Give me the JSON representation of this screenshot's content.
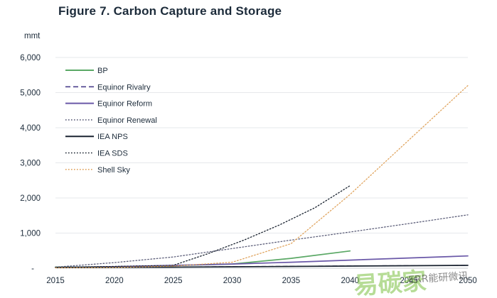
{
  "chart_data": {
    "type": "line",
    "title": "Figure 7. Carbon Capture and Storage",
    "ylabel": "mmt",
    "xlabel": "",
    "xlim": [
      2015,
      2050
    ],
    "ylim": [
      0,
      6000
    ],
    "x_ticks": [
      "2015",
      "2020",
      "2025",
      "2030",
      "2035",
      "2040",
      "2045",
      "2050"
    ],
    "y_ticks": [
      "-",
      "1,000",
      "2,000",
      "3,000",
      "4,000",
      "5,000",
      "6,000"
    ],
    "grid": "horizontal",
    "legend_position": "top-left",
    "series": [
      {
        "name": "BP",
        "color": "#5aa865",
        "style": "solid",
        "points": [
          [
            2015,
            30
          ],
          [
            2020,
            45
          ],
          [
            2025,
            75
          ],
          [
            2030,
            120
          ],
          [
            2035,
            280
          ],
          [
            2040,
            490
          ]
        ]
      },
      {
        "name": "Equinor Rivalry",
        "color": "#4b3f8c",
        "style": "dashed",
        "points": [
          [
            2015,
            20
          ],
          [
            2020,
            25
          ],
          [
            2025,
            35
          ],
          [
            2030,
            45
          ],
          [
            2035,
            55
          ],
          [
            2040,
            65
          ],
          [
            2045,
            72
          ],
          [
            2050,
            80
          ]
        ]
      },
      {
        "name": "Equinor Reform",
        "color": "#6a58a8",
        "style": "solid",
        "points": [
          [
            2015,
            25
          ],
          [
            2020,
            45
          ],
          [
            2025,
            80
          ],
          [
            2030,
            120
          ],
          [
            2035,
            170
          ],
          [
            2040,
            230
          ],
          [
            2045,
            290
          ],
          [
            2050,
            350
          ]
        ]
      },
      {
        "name": "Equinor Renewal",
        "color": "#5d5f7a",
        "style": "dotted",
        "points": [
          [
            2015,
            30
          ],
          [
            2020,
            160
          ],
          [
            2025,
            320
          ],
          [
            2030,
            560
          ],
          [
            2035,
            800
          ],
          [
            2040,
            1030
          ],
          [
            2045,
            1270
          ],
          [
            2050,
            1520
          ]
        ]
      },
      {
        "name": "IEA NPS",
        "color": "#1a2330",
        "style": "solid",
        "points": [
          [
            2015,
            20
          ],
          [
            2020,
            25
          ],
          [
            2025,
            30
          ],
          [
            2030,
            40
          ],
          [
            2035,
            50
          ],
          [
            2040,
            60
          ],
          [
            2045,
            70
          ],
          [
            2050,
            80
          ]
        ]
      },
      {
        "name": "IEA SDS",
        "color": "#1a2330",
        "style": "dotted",
        "points": [
          [
            2015,
            20
          ],
          [
            2025,
            80
          ],
          [
            2028,
            420
          ],
          [
            2031,
            800
          ],
          [
            2034,
            1230
          ],
          [
            2037,
            1720
          ],
          [
            2040,
            2350
          ]
        ]
      },
      {
        "name": "Shell Sky",
        "color": "#e0a45e",
        "style": "dotted",
        "points": [
          [
            2015,
            10
          ],
          [
            2020,
            20
          ],
          [
            2025,
            60
          ],
          [
            2030,
            170
          ],
          [
            2035,
            700
          ],
          [
            2040,
            2100
          ],
          [
            2045,
            3650
          ],
          [
            2050,
            5200
          ]
        ]
      }
    ]
  },
  "watermark": {
    "main": "易碳家",
    "sub": "ERR能研微讯"
  }
}
